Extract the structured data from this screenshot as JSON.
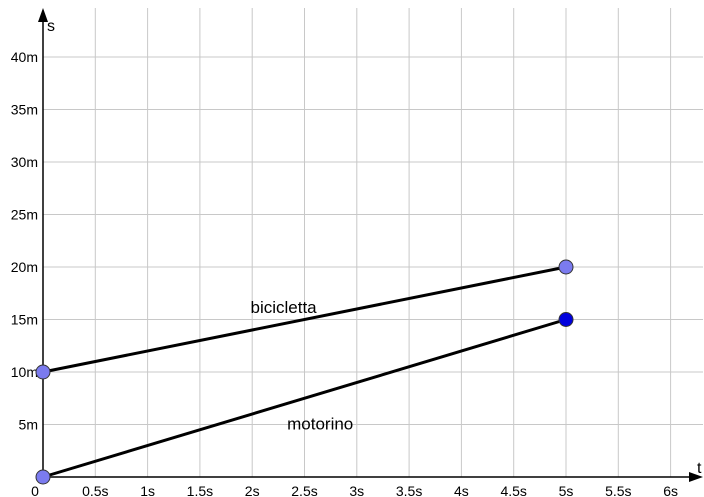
{
  "chart_data": {
    "type": "line",
    "title": "",
    "xlabel": "t",
    "ylabel": "s",
    "xlim": [
      0,
      6.2
    ],
    "ylim": [
      0,
      44
    ],
    "grid": true,
    "x_ticks": [
      {
        "value": 0,
        "label": "0"
      },
      {
        "value": 0.5,
        "label": "0.5s"
      },
      {
        "value": 1,
        "label": "1s"
      },
      {
        "value": 1.5,
        "label": "1.5s"
      },
      {
        "value": 2,
        "label": "2s"
      },
      {
        "value": 2.5,
        "label": "2.5s"
      },
      {
        "value": 3,
        "label": "3s"
      },
      {
        "value": 3.5,
        "label": "3.5s"
      },
      {
        "value": 4,
        "label": "4s"
      },
      {
        "value": 4.5,
        "label": "4.5s"
      },
      {
        "value": 5,
        "label": "5s"
      },
      {
        "value": 5.5,
        "label": "5.5s"
      },
      {
        "value": 6,
        "label": "6s"
      }
    ],
    "y_ticks": [
      {
        "value": 5,
        "label": "5m"
      },
      {
        "value": 10,
        "label": "10m"
      },
      {
        "value": 15,
        "label": "15m"
      },
      {
        "value": 20,
        "label": "20m"
      },
      {
        "value": 25,
        "label": "25m"
      },
      {
        "value": 30,
        "label": "30m"
      },
      {
        "value": 35,
        "label": "35m"
      },
      {
        "value": 40,
        "label": "40m"
      }
    ],
    "series": [
      {
        "name": "bicicletta",
        "color": "#000000",
        "points": [
          {
            "x": 0,
            "y": 10,
            "color": "#7b7bef"
          },
          {
            "x": 5,
            "y": 20,
            "color": "#7b7bef"
          }
        ],
        "label_at": {
          "x": 2.3,
          "y": 16.2
        }
      },
      {
        "name": "motorino",
        "color": "#000000",
        "points": [
          {
            "x": 0,
            "y": 0,
            "color": "#7b7bef"
          },
          {
            "x": 5,
            "y": 15,
            "color": "#0000dd"
          }
        ],
        "label_at": {
          "x": 2.65,
          "y": 5.1
        }
      }
    ]
  }
}
